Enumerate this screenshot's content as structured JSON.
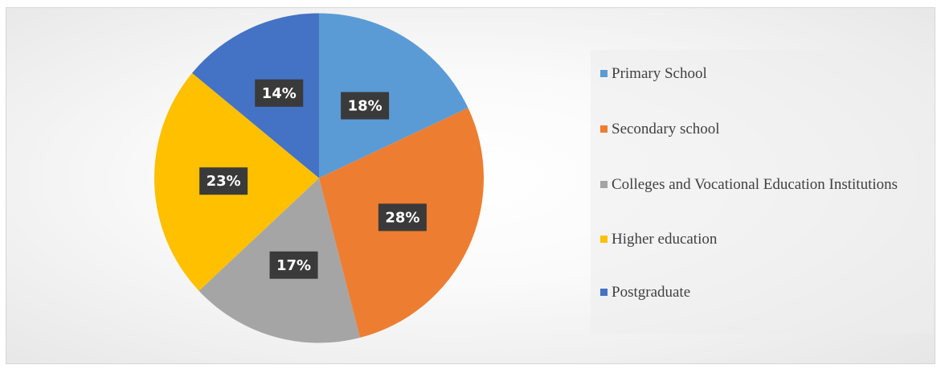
{
  "chart_data": {
    "type": "pie",
    "categories": [
      "Primary School",
      "Secondary school",
      "Colleges and Vocational Education Institutions",
      "Higher education",
      "Postgraduate"
    ],
    "values": [
      18,
      28,
      17,
      23,
      14
    ],
    "data_labels": [
      "18%",
      "28%",
      "17%",
      "23%",
      "14%"
    ],
    "colors": [
      "#5B9BD5",
      "#ED7D31",
      "#A5A5A5",
      "#FFC000",
      "#4472C4"
    ],
    "start_angle_deg": 0,
    "direction": "clockwise",
    "legend_position": "right",
    "title": ""
  }
}
